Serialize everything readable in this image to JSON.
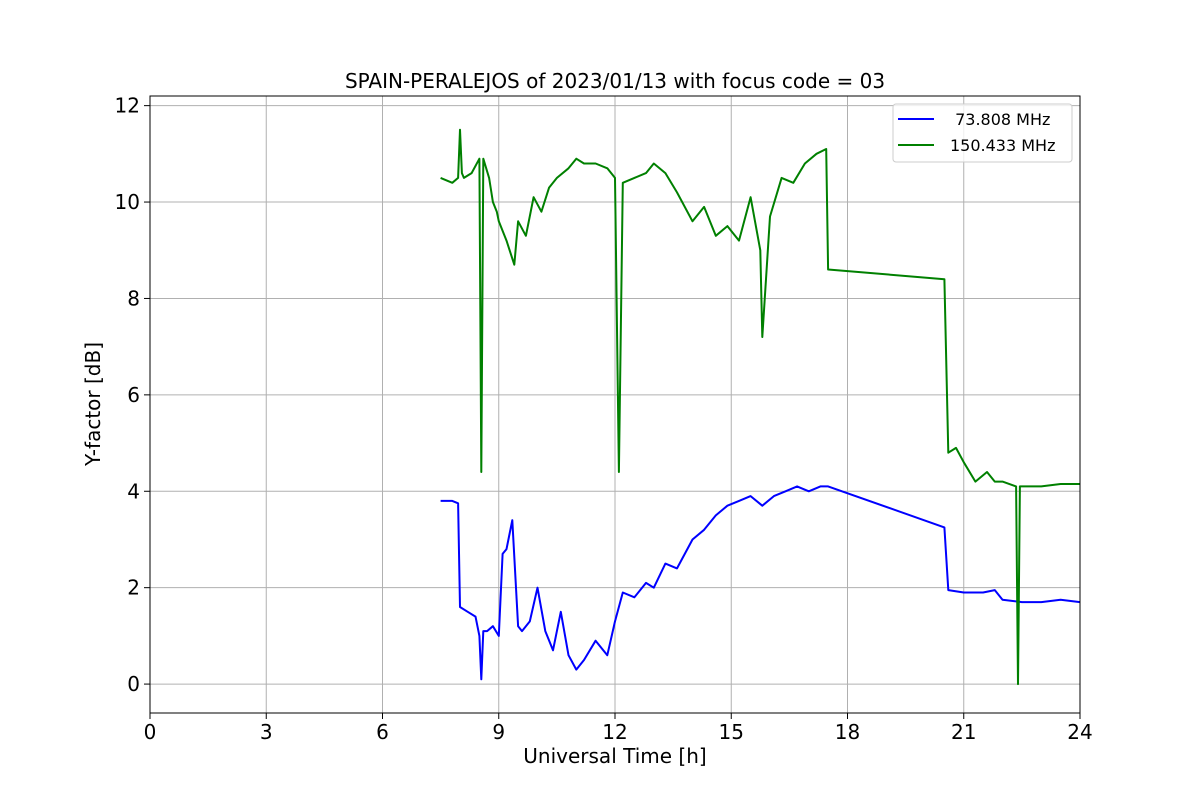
{
  "chart_data": {
    "type": "line",
    "title": "SPAIN-PERALEJOS of 2023/01/13 with focus code = 03",
    "xlabel": "Universal Time [h]",
    "ylabel": "Y-factor [dB]",
    "xlim": [
      0,
      24
    ],
    "ylim": [
      -0.6,
      12.2
    ],
    "xticks": [
      0,
      3,
      6,
      9,
      12,
      15,
      18,
      21,
      24
    ],
    "yticks": [
      0,
      2,
      4,
      6,
      8,
      10,
      12
    ],
    "grid": true,
    "legend_position": "top-right",
    "series": [
      {
        "name": " 73.808 MHz",
        "color": "#0000ff",
        "x": [
          7.5,
          7.8,
          7.95,
          8.0,
          8.2,
          8.4,
          8.5,
          8.55,
          8.6,
          8.7,
          8.85,
          9.0,
          9.1,
          9.2,
          9.35,
          9.5,
          9.6,
          9.8,
          10.0,
          10.2,
          10.4,
          10.6,
          10.8,
          11.0,
          11.2,
          11.5,
          11.8,
          12.0,
          12.2,
          12.5,
          12.8,
          13.0,
          13.3,
          13.6,
          14.0,
          14.3,
          14.6,
          14.9,
          15.2,
          15.5,
          15.8,
          16.1,
          16.4,
          16.7,
          17.0,
          17.3,
          17.5,
          20.5,
          20.6,
          21.0,
          21.5,
          21.8,
          22.0,
          22.5,
          23.0,
          23.5,
          24.0
        ],
        "y": [
          3.8,
          3.8,
          3.75,
          1.6,
          1.5,
          1.4,
          1.0,
          0.1,
          1.1,
          1.1,
          1.2,
          1.0,
          2.7,
          2.8,
          3.4,
          1.2,
          1.1,
          1.3,
          2.0,
          1.1,
          0.7,
          1.5,
          0.6,
          0.3,
          0.5,
          0.9,
          0.6,
          1.3,
          1.9,
          1.8,
          2.1,
          2.0,
          2.5,
          2.4,
          3.0,
          3.2,
          3.5,
          3.7,
          3.8,
          3.9,
          3.7,
          3.9,
          4.0,
          4.1,
          4.0,
          4.1,
          4.1,
          3.25,
          1.95,
          1.9,
          1.9,
          1.95,
          1.75,
          1.7,
          1.7,
          1.75,
          1.7
        ]
      },
      {
        "name": "150.433 MHz",
        "color": "#008000",
        "x": [
          7.5,
          7.8,
          7.95,
          8.0,
          8.05,
          8.1,
          8.3,
          8.5,
          8.55,
          8.6,
          8.75,
          8.85,
          8.95,
          9.0,
          9.2,
          9.4,
          9.5,
          9.7,
          9.9,
          10.1,
          10.3,
          10.5,
          10.8,
          11.0,
          11.2,
          11.5,
          11.8,
          12.0,
          12.1,
          12.2,
          12.5,
          12.8,
          13.0,
          13.3,
          13.6,
          14.0,
          14.3,
          14.6,
          14.9,
          15.2,
          15.5,
          15.75,
          15.8,
          16.0,
          16.3,
          16.6,
          16.9,
          17.2,
          17.45,
          17.5,
          20.5,
          20.6,
          20.8,
          21.0,
          21.3,
          21.6,
          21.8,
          22.0,
          22.35,
          22.4,
          22.45,
          23.0,
          23.5,
          24.0
        ],
        "y": [
          10.5,
          10.4,
          10.5,
          11.5,
          10.6,
          10.5,
          10.6,
          10.9,
          4.4,
          10.9,
          10.5,
          10.0,
          9.8,
          9.6,
          9.2,
          8.7,
          9.6,
          9.3,
          10.1,
          9.8,
          10.3,
          10.5,
          10.7,
          10.9,
          10.8,
          10.8,
          10.7,
          10.5,
          4.4,
          10.4,
          10.5,
          10.6,
          10.8,
          10.6,
          10.2,
          9.6,
          9.9,
          9.3,
          9.5,
          9.2,
          10.1,
          9.0,
          7.2,
          9.7,
          10.5,
          10.4,
          10.8,
          11.0,
          11.1,
          8.6,
          8.4,
          4.8,
          4.9,
          4.6,
          4.2,
          4.4,
          4.2,
          4.2,
          4.1,
          0.0,
          4.1,
          4.1,
          4.15,
          4.15
        ]
      }
    ]
  }
}
